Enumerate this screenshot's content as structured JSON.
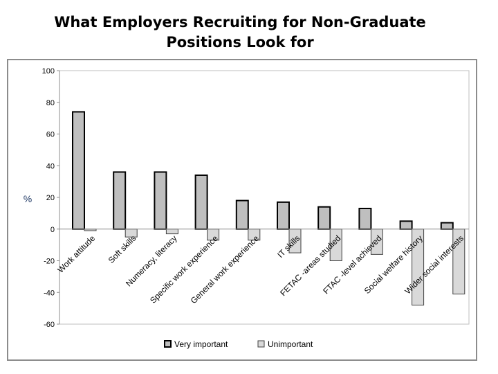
{
  "title_lines": [
    "What Employers Recruiting for Non-Graduate",
    "Positions Look for"
  ],
  "chart_data": {
    "type": "bar",
    "title": "What Employers Recruiting for Non-Graduate Positions Look for",
    "ylabel": "%",
    "xlabel": "",
    "ylim": [
      -60,
      100
    ],
    "yticks": [
      100,
      80,
      60,
      40,
      20,
      0,
      -20,
      -40,
      -60
    ],
    "grid": false,
    "legend": "bottom",
    "categories": [
      "Work attitude",
      "Soft skills",
      "Numeracy, literacy",
      "Specific work experience",
      "General work experience",
      "IT skills",
      "FETAC -areas studied",
      "FTAC -level achieved",
      "Social welfare history",
      "Wider social interests"
    ],
    "series": [
      {
        "name": "Very important",
        "color": "#bfbfbf",
        "stroke": "#000000",
        "values": [
          74,
          36,
          36,
          34,
          18,
          17,
          14,
          13,
          5,
          4
        ]
      },
      {
        "name": "Unimportant",
        "color": "#d9d9d9",
        "stroke": "#404040",
        "values": [
          -1,
          -5,
          -3,
          -7,
          -7,
          -15,
          -20,
          -16,
          -48,
          -41
        ]
      }
    ]
  }
}
